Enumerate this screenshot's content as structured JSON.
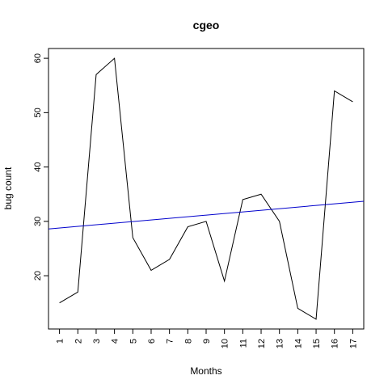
{
  "chart_data": {
    "type": "line",
    "title": "cgeo",
    "xlabel": "Months",
    "ylabel": "bug count",
    "categories": [
      "1",
      "2",
      "3",
      "4",
      "5",
      "6",
      "7",
      "8",
      "9",
      "10",
      "11",
      "12",
      "13",
      "14",
      "15",
      "16",
      "17"
    ],
    "series": [
      {
        "values": [
          15,
          17,
          57,
          60,
          27,
          21,
          23,
          29,
          30,
          19,
          34,
          35,
          30,
          14,
          12,
          54,
          52
        ],
        "color": "#000000"
      }
    ],
    "trend_line": {
      "x": [
        0.4,
        17.6
      ],
      "y": [
        28.6,
        33.7
      ],
      "color": "#0000cc"
    },
    "y_ticks": [
      20,
      30,
      40,
      50,
      60
    ],
    "xlim": [
      0.4,
      17.6
    ],
    "ylim": [
      10.2,
      61.8
    ],
    "grid": false,
    "legend": "none"
  }
}
